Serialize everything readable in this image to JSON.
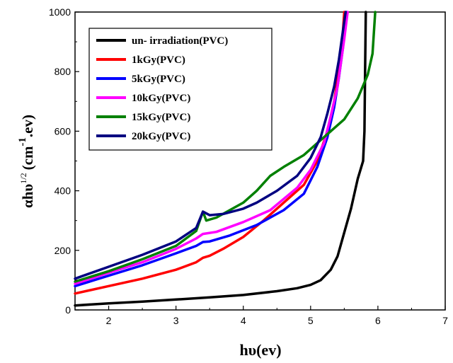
{
  "chart_data": {
    "type": "line",
    "xlabel": "hυ(ev)",
    "ylabel_main": "αhυ",
    "ylabel_sup1": "1/2",
    "ylabel_unit_open": "(cm",
    "ylabel_unit_sup": "-1",
    "ylabel_unit_close": ".ev)",
    "xlim": [
      1.5,
      7
    ],
    "ylim": [
      0,
      1000
    ],
    "xticks": [
      2,
      3,
      4,
      5,
      6,
      7
    ],
    "yticks": [
      0,
      200,
      400,
      600,
      800,
      1000
    ],
    "grid": false,
    "legend_position": "top-left",
    "series": [
      {
        "name": "un- irradiation(PVC)",
        "color": "#000000",
        "x": [
          1.5,
          2,
          2.5,
          3,
          3.5,
          4,
          4.5,
          4.8,
          5,
          5.15,
          5.3,
          5.4,
          5.5,
          5.6,
          5.7,
          5.78,
          5.8,
          5.81,
          5.82
        ],
        "y": [
          15,
          22,
          28,
          35,
          42,
          50,
          63,
          73,
          84,
          100,
          135,
          180,
          260,
          340,
          440,
          500,
          600,
          800,
          1000
        ]
      },
      {
        "name": "1kGy(PVC)",
        "color": "#ff0000",
        "x": [
          1.5,
          2,
          2.5,
          3,
          3.3,
          3.4,
          3.5,
          3.7,
          4,
          4.3,
          4.6,
          4.9,
          5.1,
          5.25,
          5.35,
          5.42,
          5.47,
          5.5
        ],
        "y": [
          55,
          80,
          105,
          135,
          160,
          175,
          182,
          205,
          245,
          300,
          360,
          420,
          500,
          600,
          700,
          800,
          900,
          1000
        ]
      },
      {
        "name": "5kGy(PVC)",
        "color": "#0000ff",
        "x": [
          1.5,
          2,
          2.5,
          3,
          3.3,
          3.4,
          3.5,
          3.8,
          4.2,
          4.6,
          4.9,
          5.1,
          5.25,
          5.35,
          5.42,
          5.48,
          5.53
        ],
        "y": [
          80,
          115,
          150,
          190,
          215,
          228,
          230,
          250,
          285,
          335,
          390,
          480,
          580,
          680,
          780,
          880,
          1000
        ]
      },
      {
        "name": "10kGy(PVC)",
        "color": "#ff00ff",
        "x": [
          1.5,
          2,
          2.5,
          3,
          3.3,
          3.4,
          3.6,
          4,
          4.4,
          4.8,
          5,
          5.2,
          5.3,
          5.4,
          5.45,
          5.5,
          5.55
        ],
        "y": [
          88,
          125,
          160,
          205,
          240,
          255,
          262,
          295,
          335,
          410,
          470,
          560,
          650,
          750,
          830,
          910,
          1000
        ]
      },
      {
        "name": "15kGy(PVC)",
        "color": "#008000",
        "x": [
          1.5,
          2,
          2.5,
          3,
          3.3,
          3.4,
          3.45,
          3.6,
          4,
          4.2,
          4.4,
          4.6,
          4.9,
          5.2,
          5.5,
          5.7,
          5.85,
          5.92,
          5.96
        ],
        "y": [
          95,
          130,
          170,
          215,
          265,
          330,
          300,
          310,
          360,
          400,
          450,
          480,
          520,
          580,
          640,
          710,
          790,
          860,
          1000
        ]
      },
      {
        "name": "20kGy(PVC)",
        "color": "#000080",
        "x": [
          1.5,
          2,
          2.5,
          3,
          3.3,
          3.4,
          3.5,
          3.7,
          4,
          4.2,
          4.5,
          4.8,
          5,
          5.15,
          5.25,
          5.35,
          5.42,
          5.47,
          5.52
        ],
        "y": [
          105,
          145,
          185,
          230,
          275,
          330,
          318,
          322,
          340,
          360,
          400,
          450,
          510,
          580,
          660,
          750,
          840,
          920,
          1000
        ]
      }
    ]
  }
}
